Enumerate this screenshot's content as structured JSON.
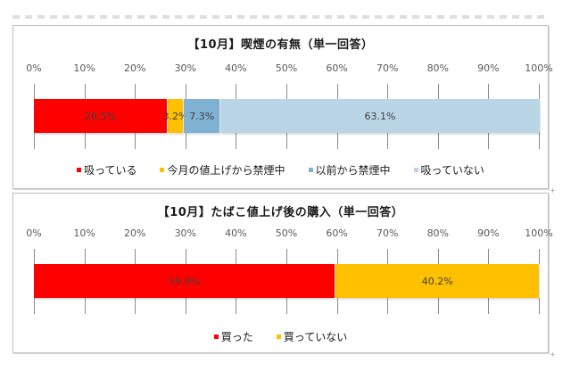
{
  "chart_data": [
    {
      "type": "bar",
      "orientation": "horizontal-stacked-100",
      "title": "【10月】喫煙の有無（単一回答）",
      "xlabel": "",
      "ylabel": "",
      "xlim": [
        0,
        100
      ],
      "ticks": [
        "0%",
        "10%",
        "20%",
        "30%",
        "40%",
        "50%",
        "60%",
        "70%",
        "80%",
        "90%",
        "100%"
      ],
      "grid": false,
      "legend_position": "bottom",
      "categories": [
        ""
      ],
      "series": [
        {
          "name": "吸っている",
          "values": [
            26.5
          ],
          "label": "26.5%",
          "color": "#ff0000"
        },
        {
          "name": "今月の値上げから禁煙中",
          "values": [
            3.2
          ],
          "label": "3.2%",
          "color": "#ffc000"
        },
        {
          "name": "以前から禁煙中",
          "values": [
            7.3
          ],
          "label": "7.3%",
          "color": "#7fb2d2"
        },
        {
          "name": "吸っていない",
          "values": [
            63.1
          ],
          "label": "63.1%",
          "color": "#bad5e6"
        }
      ]
    },
    {
      "type": "bar",
      "orientation": "horizontal-stacked-100",
      "title": "【10月】たばこ値上げ後の購入（単一回答）",
      "xlabel": "",
      "ylabel": "",
      "xlim": [
        0,
        100
      ],
      "ticks": [
        "0%",
        "10%",
        "20%",
        "30%",
        "40%",
        "50%",
        "60%",
        "70%",
        "80%",
        "90%",
        "100%"
      ],
      "grid": false,
      "legend_position": "bottom",
      "categories": [
        ""
      ],
      "series": [
        {
          "name": "買った",
          "values": [
            59.8
          ],
          "label": "59.8%",
          "color": "#ff0000"
        },
        {
          "name": "買っていない",
          "values": [
            40.2
          ],
          "label": "40.2%",
          "color": "#ffc000"
        }
      ]
    }
  ]
}
